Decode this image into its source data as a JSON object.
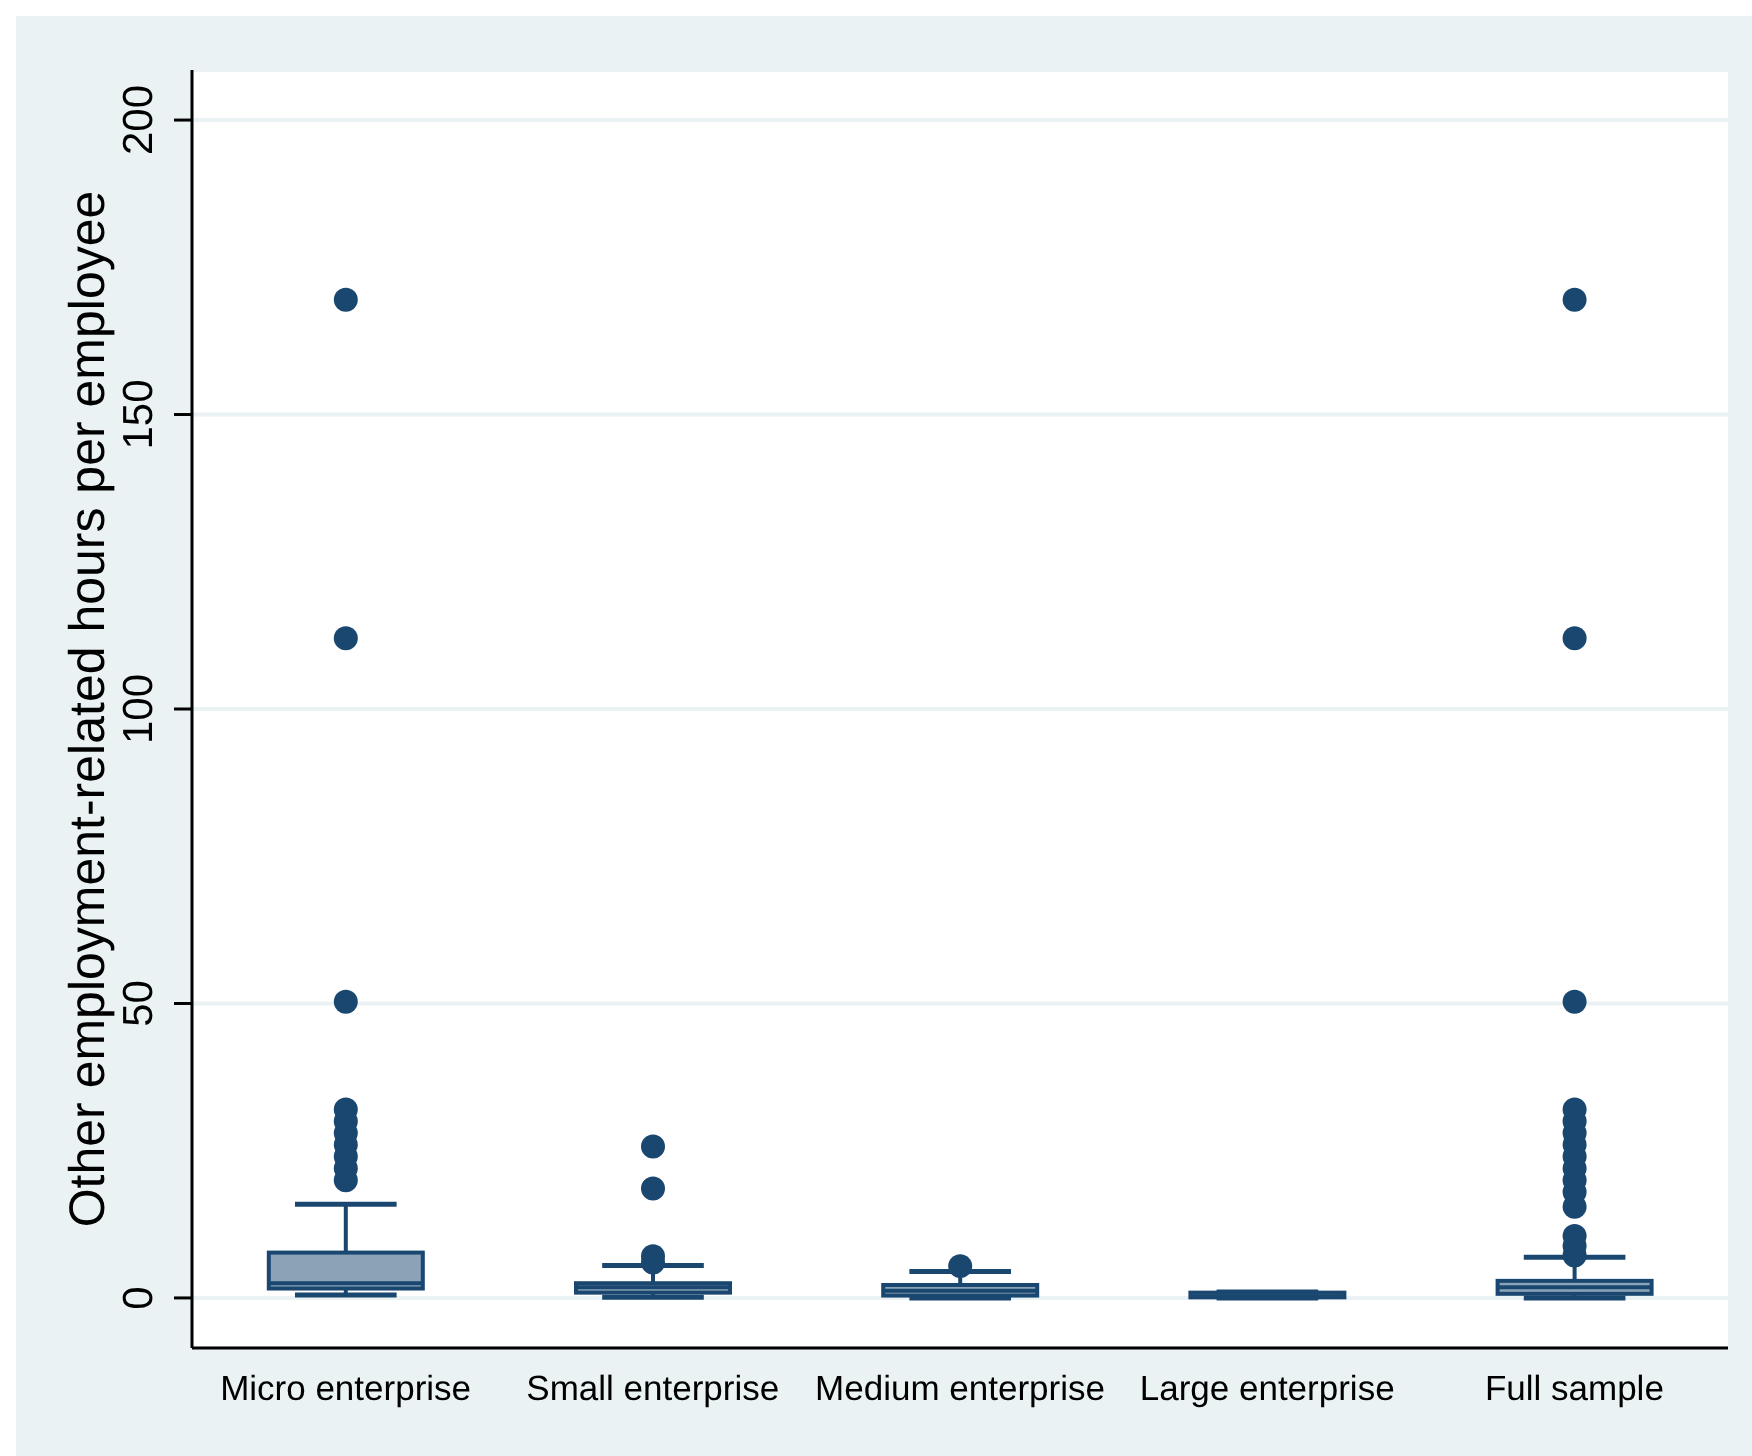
{
  "chart_data": {
    "type": "box",
    "ylabel": "Other employment-related hours per employee",
    "categories": [
      "Micro enterprise",
      "Small enterprise",
      "Medium enterprise",
      "Large enterprise",
      "Full sample"
    ],
    "color": "#1a476f",
    "ylim": [
      -8.5,
      208.5
    ],
    "yticks": [
      0,
      50,
      100,
      150,
      200
    ],
    "grid": "y",
    "boxes": [
      {
        "low": 0.5,
        "q1": 1.6,
        "median": 2.5,
        "q3": 7.7,
        "high": 15.9,
        "outliers": [
          169.5,
          112,
          50.3,
          32,
          30,
          28,
          26,
          24,
          22,
          20
        ]
      },
      {
        "low": 0.1,
        "q1": 0.9,
        "median": 1.8,
        "q3": 2.5,
        "high": 5.5,
        "outliers": [
          25.7,
          18.6,
          7.1,
          6
        ]
      },
      {
        "low": 0,
        "q1": 0.4,
        "median": 1.2,
        "q3": 2.2,
        "high": 4.5,
        "outliers": [
          5.4
        ]
      },
      {
        "low": 0,
        "q1": 0.1,
        "median": 0.3,
        "q3": 0.9,
        "high": 1
      },
      {
        "low": 0,
        "q1": 0.7,
        "median": 1.8,
        "q3": 2.9,
        "high": 6.9,
        "outliers": [
          169.5,
          112,
          50.3,
          32,
          30,
          28,
          26,
          24,
          22,
          20,
          18,
          15.5,
          10.5,
          8.8,
          7.2
        ]
      }
    ]
  }
}
